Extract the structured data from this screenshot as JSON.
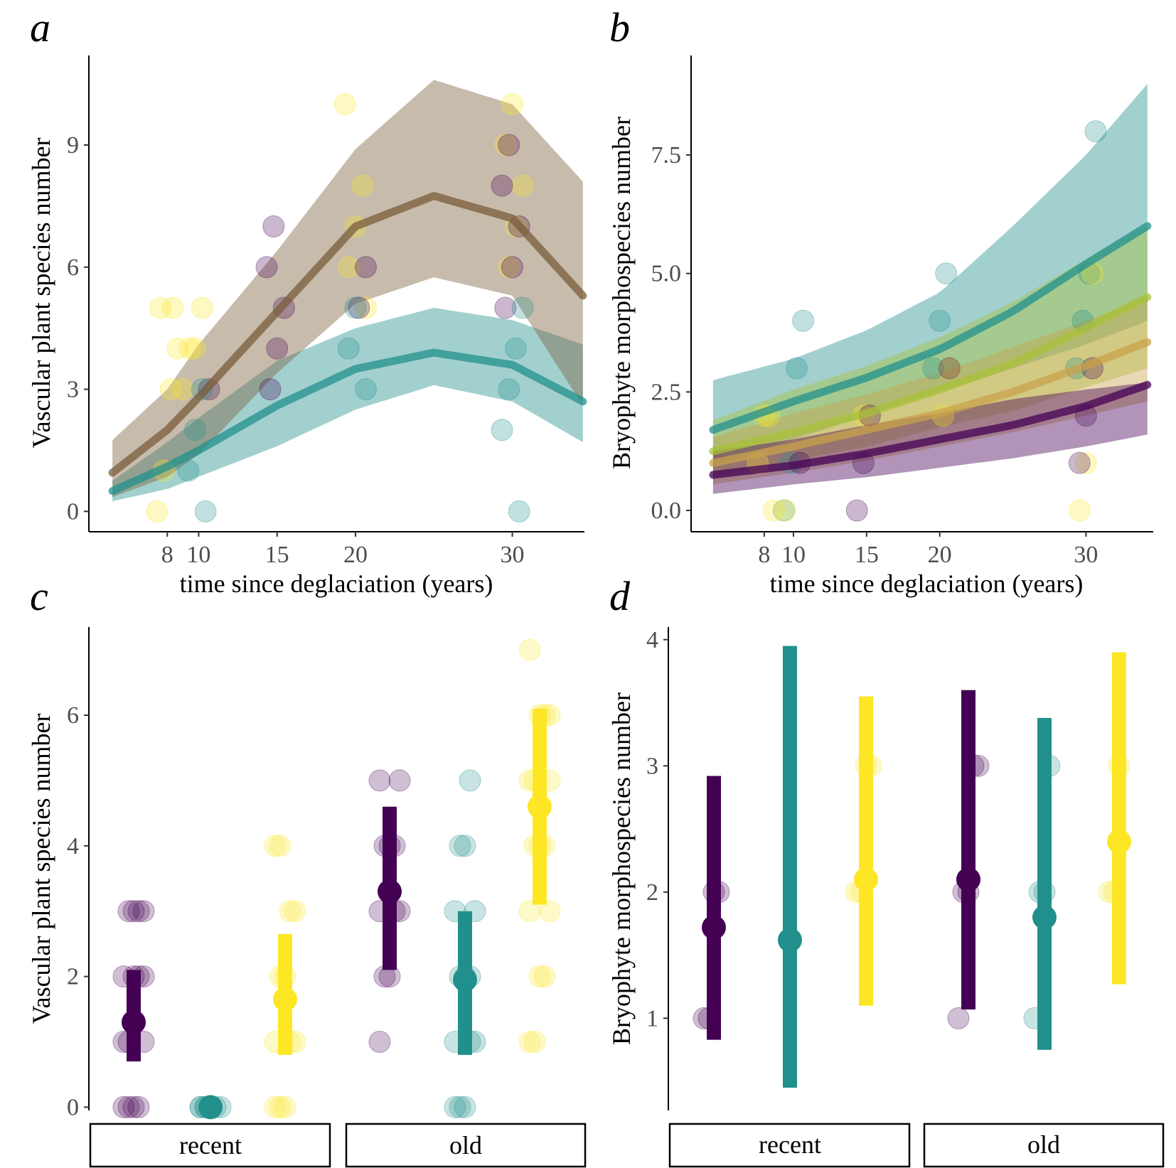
{
  "colors": {
    "purple": "#440154",
    "teal": "#21908c",
    "yellow": "#fde725",
    "brown": "#8b5a2b"
  },
  "chart_data": [
    {
      "panel": "a",
      "type": "scatter",
      "xlabel": "time since deglaciation (years)",
      "ylabel": "Vascular plant species number",
      "xticks": [
        "8",
        "10",
        "15",
        "20",
        "30"
      ],
      "yticks": [
        "0",
        "3",
        "6",
        "9"
      ],
      "xlim": [
        3,
        34.6
      ],
      "ylim": [
        -0.5,
        11.2
      ],
      "fits": [
        {
          "color": "#21908c",
          "x": [
            4.5,
            8,
            10,
            15,
            20,
            25,
            30,
            34.5
          ],
          "y": [
            0.5,
            1.1,
            1.5,
            2.6,
            3.5,
            3.9,
            3.6,
            2.7
          ],
          "lower": [
            0.25,
            0.55,
            0.85,
            1.6,
            2.5,
            3.1,
            2.7,
            1.7
          ],
          "upper": [
            0.75,
            1.7,
            2.3,
            3.7,
            4.5,
            5.0,
            4.7,
            4.1
          ]
        },
        {
          "color": "#7a5c3a",
          "x": [
            4.5,
            8,
            10,
            15,
            20,
            25,
            30,
            34.5
          ],
          "y": [
            0.95,
            2.0,
            2.8,
            4.9,
            7.0,
            7.75,
            7.2,
            5.3
          ],
          "lower": [
            0.35,
            0.85,
            1.4,
            3.4,
            5.1,
            5.75,
            5.3,
            2.6
          ],
          "upper": [
            1.75,
            3.0,
            4.1,
            6.4,
            8.9,
            10.6,
            10.0,
            8.1
          ]
        }
      ],
      "points": [
        {
          "color": "#fde725",
          "x": [
            8,
            8,
            8,
            8,
            8,
            9,
            9,
            9,
            10,
            10,
            20,
            20,
            20,
            20,
            20,
            30,
            30,
            30,
            30,
            30
          ],
          "y": [
            0,
            1,
            3,
            4,
            5,
            3,
            4,
            5,
            4,
            5,
            5,
            6,
            7,
            8,
            10,
            6,
            7,
            8,
            9,
            10
          ]
        },
        {
          "color": "#440154",
          "x": [
            10,
            15,
            15,
            15,
            15,
            15,
            20,
            20,
            30,
            30,
            30,
            30,
            30
          ],
          "y": [
            3,
            3,
            4,
            5,
            6,
            7,
            5,
            6,
            5,
            6,
            7,
            8,
            9
          ]
        },
        {
          "color": "#21908c",
          "x": [
            10,
            10,
            10,
            10,
            20,
            20,
            20,
            30,
            30,
            30,
            30,
            30
          ],
          "y": [
            0,
            1,
            2,
            3,
            3,
            4,
            5,
            0,
            2,
            3,
            4,
            5
          ]
        }
      ]
    },
    {
      "panel": "b",
      "type": "scatter",
      "xlabel": "time since deglaciation (years)",
      "ylabel": "Bryophyte morphospecies number",
      "xticks": [
        "8",
        "10",
        "15",
        "20",
        "30"
      ],
      "yticks": [
        "0.0",
        "2.5",
        "5.0",
        "7.5"
      ],
      "xlim": [
        3,
        34.6
      ],
      "ylim": [
        -0.45,
        9.6
      ],
      "fits": [
        {
          "color": "#21908c",
          "x": [
            4.5,
            10,
            15,
            20,
            25,
            30,
            34.2
          ],
          "y": [
            1.7,
            2.3,
            2.8,
            3.4,
            4.2,
            5.2,
            6.0
          ],
          "lower": [
            0.95,
            1.5,
            2.0,
            2.5,
            3.0,
            3.5,
            4.0
          ],
          "upper": [
            2.75,
            3.2,
            3.8,
            4.6,
            6.0,
            7.5,
            9.0
          ]
        },
        {
          "color": "#a8c23a",
          "x": [
            4.5,
            10,
            15,
            20,
            25,
            30,
            34.2
          ],
          "y": [
            1.25,
            1.65,
            2.05,
            2.55,
            3.1,
            3.85,
            4.5
          ],
          "lower": [
            0.7,
            1.05,
            1.35,
            1.75,
            2.1,
            2.6,
            3.0
          ],
          "upper": [
            1.9,
            2.55,
            3.05,
            3.65,
            4.4,
            5.3,
            6.0
          ]
        },
        {
          "color": "#c8a24a",
          "x": [
            4.5,
            10,
            15,
            20,
            25,
            30,
            34.2
          ],
          "y": [
            1.0,
            1.35,
            1.7,
            2.05,
            2.5,
            3.05,
            3.55
          ],
          "lower": [
            0.55,
            0.8,
            1.05,
            1.35,
            1.65,
            2.0,
            2.3
          ],
          "upper": [
            1.55,
            2.05,
            2.45,
            2.9,
            3.45,
            4.0,
            4.5
          ]
        },
        {
          "color": "#440154",
          "x": [
            4.5,
            10,
            15,
            20,
            25,
            30,
            34.2
          ],
          "y": [
            0.75,
            0.95,
            1.2,
            1.5,
            1.8,
            2.2,
            2.65
          ],
          "lower": [
            0.35,
            0.55,
            0.7,
            0.9,
            1.1,
            1.35,
            1.6
          ],
          "upper": [
            1.25,
            1.5,
            1.8,
            2.05,
            2.35,
            2.55,
            2.7
          ]
        }
      ],
      "points": [
        {
          "color": "#21908c",
          "x": [
            10,
            10,
            10,
            10,
            20,
            20,
            20,
            30,
            30,
            30,
            30
          ],
          "y": [
            0,
            1,
            3,
            4,
            3,
            4,
            5,
            3,
            4,
            5,
            8
          ]
        },
        {
          "color": "#fde725",
          "x": [
            8,
            8,
            8,
            9,
            9,
            15,
            20,
            20,
            30,
            30,
            30
          ],
          "y": [
            0,
            1,
            2,
            0,
            2,
            2,
            2,
            3,
            0,
            1,
            5
          ]
        },
        {
          "color": "#440154",
          "x": [
            10,
            15,
            15,
            15,
            20,
            30,
            30,
            30
          ],
          "y": [
            1,
            0,
            1,
            2,
            3,
            1,
            2,
            3
          ]
        }
      ]
    },
    {
      "panel": "c",
      "type": "scatter",
      "ylabel": "Vascular plant species number",
      "yticks": [
        "0",
        "2",
        "4",
        "6"
      ],
      "facets": [
        "recent",
        "old"
      ],
      "ylim": [
        -0.05,
        7.35
      ],
      "groups": [
        {
          "facet": "recent",
          "color": "#440154",
          "mean": 1.3,
          "lower": 0.7,
          "upper": 2.1,
          "points": [
            0,
            0,
            0,
            0,
            1,
            1,
            1,
            2,
            2,
            2,
            2,
            3,
            3,
            3,
            3
          ]
        },
        {
          "facet": "recent",
          "color": "#21908c",
          "mean": 0,
          "lower": 0,
          "upper": 0,
          "points": [
            0,
            0,
            0,
            0,
            0,
            0,
            0,
            0
          ]
        },
        {
          "facet": "recent",
          "color": "#fde725",
          "mean": 1.65,
          "lower": 0.8,
          "upper": 2.65,
          "points": [
            0,
            0,
            0,
            1,
            1,
            1,
            2,
            2,
            3,
            3,
            4,
            4
          ]
        },
        {
          "facet": "old",
          "color": "#440154",
          "mean": 3.3,
          "lower": 2.1,
          "upper": 4.6,
          "points": [
            1,
            2,
            2,
            3,
            3,
            3,
            4,
            4,
            4,
            5,
            5
          ]
        },
        {
          "facet": "old",
          "color": "#21908c",
          "mean": 1.95,
          "lower": 0.8,
          "upper": 3.0,
          "points": [
            0,
            0,
            0,
            1,
            1,
            1,
            2,
            2,
            2,
            3,
            3,
            4,
            4,
            5
          ]
        },
        {
          "facet": "old",
          "color": "#fde725",
          "mean": 4.6,
          "lower": 3.1,
          "upper": 6.1,
          "points": [
            1,
            1,
            2,
            2,
            3,
            3,
            4,
            4,
            4,
            5,
            5,
            5,
            6,
            6,
            6,
            7
          ]
        }
      ]
    },
    {
      "panel": "d",
      "type": "scatter",
      "ylabel": "Bryophyte morphospecies number",
      "yticks": [
        "1",
        "2",
        "3",
        "4"
      ],
      "facets": [
        "recent",
        "old"
      ],
      "ylim": [
        0.27,
        4.1
      ],
      "groups": [
        {
          "facet": "recent",
          "color": "#440154",
          "mean": 1.72,
          "lower": 0.83,
          "upper": 2.92,
          "points": [
            1,
            1,
            2,
            2
          ]
        },
        {
          "facet": "recent",
          "color": "#21908c",
          "mean": 1.62,
          "lower": 0.45,
          "upper": 3.95,
          "points": []
        },
        {
          "facet": "recent",
          "color": "#fde725",
          "mean": 2.1,
          "lower": 1.1,
          "upper": 3.55,
          "points": [
            2,
            2,
            3,
            3
          ]
        },
        {
          "facet": "old",
          "color": "#440154",
          "mean": 2.1,
          "lower": 1.07,
          "upper": 3.6,
          "points": [
            1,
            2,
            2,
            3,
            3
          ]
        },
        {
          "facet": "old",
          "color": "#21908c",
          "mean": 1.8,
          "lower": 0.75,
          "upper": 3.38,
          "points": [
            1,
            2,
            2,
            3
          ]
        },
        {
          "facet": "old",
          "color": "#fde725",
          "mean": 2.4,
          "lower": 1.27,
          "upper": 3.9,
          "points": [
            2,
            2,
            3
          ]
        }
      ]
    }
  ]
}
